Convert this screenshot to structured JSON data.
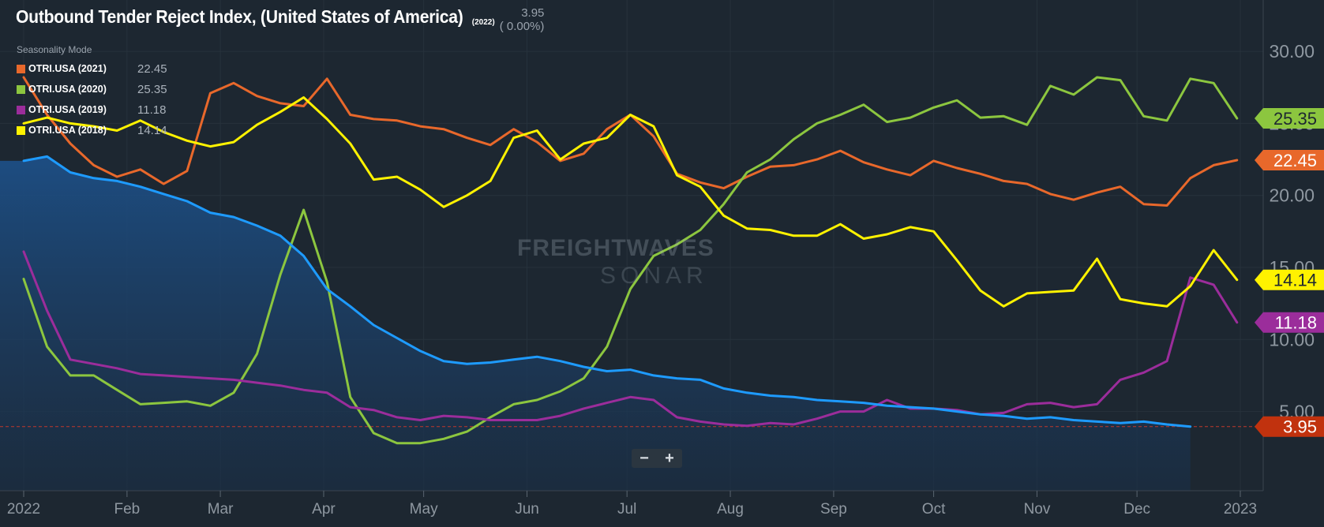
{
  "header": {
    "title": "Outbound Tender Reject Index, (United States of America)",
    "title_year": "(2022)",
    "current_value": "3.95",
    "current_change": "( 0.00%)",
    "mode_label": "Seasonality Mode"
  },
  "watermark": {
    "line1": "FREIGHTWAVES",
    "line2": "SONAR"
  },
  "zoom": {
    "minus": "−",
    "plus": "+"
  },
  "legend": [
    {
      "name": "OTRI.USA (2021)",
      "value": "22.45",
      "color": "#e8682b"
    },
    {
      "name": "OTRI.USA (2020)",
      "value": "25.35",
      "color": "#8cc63f"
    },
    {
      "name": "OTRI.USA (2019)",
      "value": "11.18",
      "color": "#9b2d9b"
    },
    {
      "name": "OTRI.USA (2018)",
      "value": "14.14",
      "color": "#fff200"
    }
  ],
  "chart_data": {
    "type": "line",
    "title": "Outbound Tender Reject Index, (United States of America)",
    "x_tick_labels": [
      "2022",
      "Feb",
      "Mar",
      "Apr",
      "May",
      "Jun",
      "Jul",
      "Aug",
      "Sep",
      "Oct",
      "Nov",
      "Dec",
      "2023"
    ],
    "y_tick_labels": [
      "5.00",
      "10.00",
      "15.00",
      "20.00",
      "25.00",
      "30.00"
    ],
    "ylim": [
      1.8,
      32.8
    ],
    "xlim": [
      "2022-01-01",
      "2023-01-01"
    ],
    "grid": true,
    "reference_line": {
      "value": 3.95,
      "color": "#c0392b"
    },
    "series": [
      {
        "name": "OTRI.USA (2022)",
        "color": "#1e9bff",
        "fill": "area",
        "label_color": "#c1320e",
        "end_label": "3.95",
        "x": [
          "2022-01-01",
          "2022-01-08",
          "2022-01-15",
          "2022-01-22",
          "2022-01-29",
          "2022-02-05",
          "2022-02-12",
          "2022-02-19",
          "2022-02-26",
          "2022-03-05",
          "2022-03-12",
          "2022-03-19",
          "2022-03-26",
          "2022-04-02",
          "2022-04-09",
          "2022-04-16",
          "2022-04-23",
          "2022-04-30",
          "2022-05-07",
          "2022-05-14",
          "2022-05-21",
          "2022-05-28",
          "2022-06-04",
          "2022-06-11",
          "2022-06-18",
          "2022-06-25",
          "2022-07-02",
          "2022-07-09",
          "2022-07-16",
          "2022-07-23",
          "2022-07-30",
          "2022-08-06",
          "2022-08-13",
          "2022-08-20",
          "2022-08-27",
          "2022-09-03",
          "2022-09-10",
          "2022-09-17",
          "2022-09-24",
          "2022-10-01",
          "2022-10-08",
          "2022-10-15",
          "2022-10-22",
          "2022-10-29",
          "2022-11-05",
          "2022-11-12",
          "2022-11-19",
          "2022-11-26",
          "2022-12-03",
          "2022-12-10",
          "2022-12-17"
        ],
        "values": [
          22.4,
          22.7,
          21.6,
          21.2,
          21.0,
          20.6,
          20.1,
          19.6,
          18.8,
          18.5,
          17.9,
          17.2,
          15.8,
          13.5,
          12.3,
          11.0,
          10.1,
          9.2,
          8.5,
          8.3,
          8.4,
          8.6,
          8.8,
          8.5,
          8.1,
          7.8,
          7.9,
          7.5,
          7.3,
          7.2,
          6.6,
          6.3,
          6.1,
          6.0,
          5.8,
          5.7,
          5.6,
          5.4,
          5.3,
          5.2,
          5.0,
          4.8,
          4.7,
          4.5,
          4.6,
          4.4,
          4.3,
          4.2,
          4.3,
          4.1,
          3.95
        ]
      },
      {
        "name": "OTRI.USA (2021)",
        "color": "#e8682b",
        "end_label": "22.45",
        "x": [
          "2022-01-01",
          "2022-01-08",
          "2022-01-15",
          "2022-01-22",
          "2022-01-29",
          "2022-02-05",
          "2022-02-12",
          "2022-02-19",
          "2022-02-26",
          "2022-03-05",
          "2022-03-12",
          "2022-03-19",
          "2022-03-26",
          "2022-04-02",
          "2022-04-09",
          "2022-04-16",
          "2022-04-23",
          "2022-04-30",
          "2022-05-07",
          "2022-05-14",
          "2022-05-21",
          "2022-05-28",
          "2022-06-04",
          "2022-06-11",
          "2022-06-18",
          "2022-06-25",
          "2022-07-02",
          "2022-07-09",
          "2022-07-16",
          "2022-07-23",
          "2022-07-30",
          "2022-08-06",
          "2022-08-13",
          "2022-08-20",
          "2022-08-27",
          "2022-09-03",
          "2022-09-10",
          "2022-09-17",
          "2022-09-24",
          "2022-10-01",
          "2022-10-08",
          "2022-10-15",
          "2022-10-22",
          "2022-10-29",
          "2022-11-05",
          "2022-11-12",
          "2022-11-19",
          "2022-11-26",
          "2022-12-03",
          "2022-12-10",
          "2022-12-17",
          "2022-12-24",
          "2022-12-31"
        ],
        "values": [
          28.2,
          25.6,
          23.6,
          22.1,
          21.3,
          21.8,
          20.8,
          21.7,
          27.1,
          27.8,
          26.9,
          26.4,
          26.2,
          28.1,
          25.6,
          25.3,
          25.2,
          24.8,
          24.6,
          24.0,
          23.5,
          24.6,
          23.7,
          22.4,
          22.9,
          24.6,
          25.6,
          24.1,
          21.5,
          20.9,
          20.5,
          21.3,
          22.0,
          22.1,
          22.5,
          23.1,
          22.3,
          21.8,
          21.4,
          22.4,
          21.9,
          21.5,
          21.0,
          20.8,
          20.1,
          19.7,
          20.2,
          20.6,
          19.4,
          19.3,
          21.2,
          22.1,
          22.45
        ]
      },
      {
        "name": "OTRI.USA (2020)",
        "color": "#8cc63f",
        "end_label": "25.35",
        "x": [
          "2022-01-01",
          "2022-01-08",
          "2022-01-15",
          "2022-01-22",
          "2022-01-29",
          "2022-02-05",
          "2022-02-12",
          "2022-02-19",
          "2022-02-26",
          "2022-03-05",
          "2022-03-12",
          "2022-03-19",
          "2022-03-26",
          "2022-04-02",
          "2022-04-09",
          "2022-04-16",
          "2022-04-23",
          "2022-04-30",
          "2022-05-07",
          "2022-05-14",
          "2022-05-21",
          "2022-05-28",
          "2022-06-04",
          "2022-06-11",
          "2022-06-18",
          "2022-06-25",
          "2022-07-02",
          "2022-07-09",
          "2022-07-16",
          "2022-07-23",
          "2022-07-30",
          "2022-08-06",
          "2022-08-13",
          "2022-08-20",
          "2022-08-27",
          "2022-09-03",
          "2022-09-10",
          "2022-09-17",
          "2022-09-24",
          "2022-10-01",
          "2022-10-08",
          "2022-10-15",
          "2022-10-22",
          "2022-10-29",
          "2022-11-05",
          "2022-11-12",
          "2022-11-19",
          "2022-11-26",
          "2022-12-03",
          "2022-12-10",
          "2022-12-17",
          "2022-12-24",
          "2022-12-31"
        ],
        "values": [
          14.2,
          9.5,
          7.5,
          7.5,
          6.5,
          5.5,
          5.6,
          5.7,
          5.4,
          6.3,
          9.0,
          14.5,
          19.0,
          14.0,
          6.0,
          3.5,
          2.8,
          2.8,
          3.1,
          3.6,
          4.6,
          5.5,
          5.8,
          6.4,
          7.3,
          9.5,
          13.5,
          15.8,
          16.6,
          17.6,
          19.4,
          21.6,
          22.5,
          23.9,
          25.0,
          25.6,
          26.3,
          25.1,
          25.4,
          26.1,
          26.6,
          25.4,
          25.5,
          24.9,
          27.6,
          27.0,
          28.2,
          28.0,
          25.5,
          25.2,
          28.1,
          27.8,
          25.35
        ]
      },
      {
        "name": "OTRI.USA (2019)",
        "color": "#9b2d9b",
        "end_label": "11.18",
        "x": [
          "2022-01-01",
          "2022-01-08",
          "2022-01-15",
          "2022-01-22",
          "2022-01-29",
          "2022-02-05",
          "2022-02-12",
          "2022-02-19",
          "2022-02-26",
          "2022-03-05",
          "2022-03-12",
          "2022-03-19",
          "2022-03-26",
          "2022-04-02",
          "2022-04-09",
          "2022-04-16",
          "2022-04-23",
          "2022-04-30",
          "2022-05-07",
          "2022-05-14",
          "2022-05-21",
          "2022-05-28",
          "2022-06-04",
          "2022-06-11",
          "2022-06-18",
          "2022-06-25",
          "2022-07-02",
          "2022-07-09",
          "2022-07-16",
          "2022-07-23",
          "2022-07-30",
          "2022-08-06",
          "2022-08-13",
          "2022-08-20",
          "2022-08-27",
          "2022-09-03",
          "2022-09-10",
          "2022-09-17",
          "2022-09-24",
          "2022-10-01",
          "2022-10-08",
          "2022-10-15",
          "2022-10-22",
          "2022-10-29",
          "2022-11-05",
          "2022-11-12",
          "2022-11-19",
          "2022-11-26",
          "2022-12-03",
          "2022-12-10",
          "2022-12-17",
          "2022-12-24",
          "2022-12-31"
        ],
        "values": [
          16.1,
          12.0,
          8.6,
          8.3,
          8.0,
          7.6,
          7.5,
          7.4,
          7.3,
          7.2,
          7.0,
          6.8,
          6.5,
          6.3,
          5.3,
          5.1,
          4.6,
          4.4,
          4.7,
          4.6,
          4.4,
          4.4,
          4.4,
          4.7,
          5.2,
          5.6,
          6.0,
          5.8,
          4.6,
          4.3,
          4.1,
          4.0,
          4.2,
          4.1,
          4.5,
          5.0,
          5.0,
          5.8,
          5.2,
          5.2,
          5.1,
          4.8,
          4.9,
          5.5,
          5.6,
          5.3,
          5.5,
          7.2,
          7.7,
          8.5,
          14.3,
          13.8,
          11.18
        ]
      },
      {
        "name": "OTRI.USA (2018)",
        "color": "#fff200",
        "end_label": "14.14",
        "x": [
          "2022-01-01",
          "2022-01-08",
          "2022-01-15",
          "2022-01-22",
          "2022-01-29",
          "2022-02-05",
          "2022-02-12",
          "2022-02-19",
          "2022-02-26",
          "2022-03-05",
          "2022-03-12",
          "2022-03-19",
          "2022-03-26",
          "2022-04-02",
          "2022-04-09",
          "2022-04-16",
          "2022-04-23",
          "2022-04-30",
          "2022-05-07",
          "2022-05-14",
          "2022-05-21",
          "2022-05-28",
          "2022-06-04",
          "2022-06-11",
          "2022-06-18",
          "2022-06-25",
          "2022-07-02",
          "2022-07-09",
          "2022-07-16",
          "2022-07-23",
          "2022-07-30",
          "2022-08-06",
          "2022-08-13",
          "2022-08-20",
          "2022-08-27",
          "2022-09-03",
          "2022-09-10",
          "2022-09-17",
          "2022-09-24",
          "2022-10-01",
          "2022-10-08",
          "2022-10-15",
          "2022-10-22",
          "2022-10-29",
          "2022-11-05",
          "2022-11-12",
          "2022-11-19",
          "2022-11-26",
          "2022-12-03",
          "2022-12-10",
          "2022-12-17",
          "2022-12-24",
          "2022-12-31"
        ],
        "values": [
          25.0,
          25.4,
          25.0,
          24.8,
          24.5,
          25.2,
          24.4,
          23.8,
          23.4,
          23.7,
          24.9,
          25.8,
          26.8,
          25.3,
          23.6,
          21.1,
          21.3,
          20.4,
          19.2,
          20.0,
          21.0,
          24.0,
          24.5,
          22.5,
          23.6,
          24.0,
          25.6,
          24.8,
          21.4,
          20.6,
          18.6,
          17.7,
          17.6,
          17.2,
          17.2,
          18.0,
          17.0,
          17.3,
          17.8,
          17.5,
          15.5,
          13.4,
          12.3,
          13.2,
          13.3,
          13.4,
          15.6,
          12.8,
          12.5,
          12.3,
          13.7,
          16.2,
          14.14
        ]
      }
    ]
  }
}
